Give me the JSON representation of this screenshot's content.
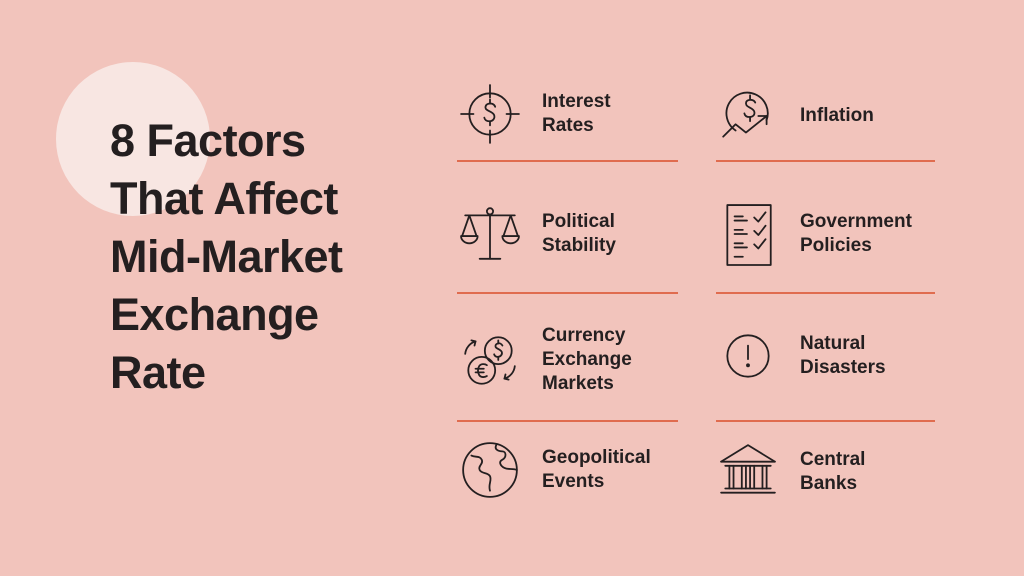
{
  "title_lines": [
    "8 Factors",
    "That Affect",
    "Mid-Market",
    "Exchange",
    "Rate"
  ],
  "accent_color": "#e06c4f",
  "background_color": "#f2c4bc",
  "factors": [
    {
      "lines": [
        "Interest",
        "Rates"
      ],
      "icon": "target-dollar-icon"
    },
    {
      "lines": [
        "Inflation"
      ],
      "icon": "dollar-trend-up-icon"
    },
    {
      "lines": [
        "Political",
        "Stability"
      ],
      "icon": "balance-scale-icon"
    },
    {
      "lines": [
        "Government",
        "Policies"
      ],
      "icon": "checklist-document-icon"
    },
    {
      "lines": [
        "Currency",
        "Exchange",
        "Markets"
      ],
      "icon": "currency-exchange-icon"
    },
    {
      "lines": [
        "Natural",
        "Disasters"
      ],
      "icon": "exclamation-circle-icon"
    },
    {
      "lines": [
        "Geopolitical",
        "Events"
      ],
      "icon": "globe-icon"
    },
    {
      "lines": [
        "Central",
        "Banks"
      ],
      "icon": "bank-building-icon"
    }
  ]
}
